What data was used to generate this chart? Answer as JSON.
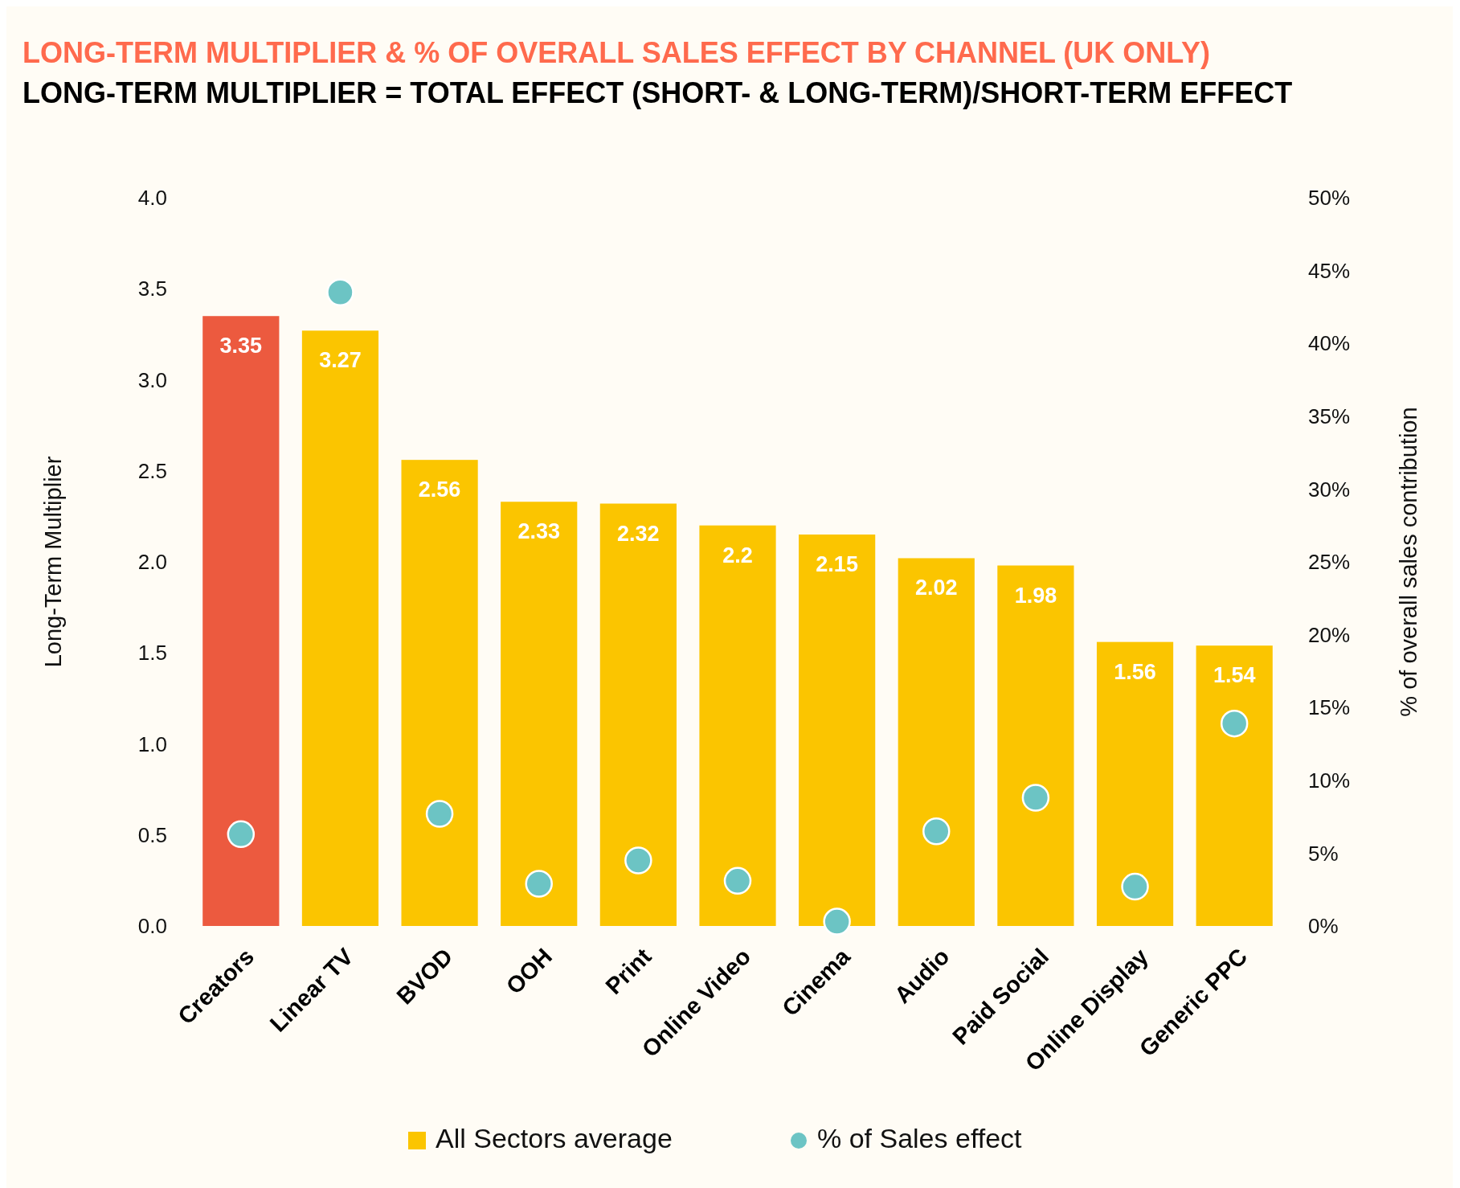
{
  "chart_data": {
    "type": "bar",
    "title": "LONG-TERM MULTIPLIER & % OF OVERALL SALES EFFECT BY CHANNEL (UK ONLY)",
    "subtitle": "LONG-TERM MULTIPLIER = TOTAL EFFECT (SHORT- & LONG-TERM)/SHORT-TERM EFFECT",
    "ylabel": "Long-Term Multiplier",
    "y2label": "% of overall sales contribution",
    "categories": [
      "Creators",
      "Linear TV",
      "BVOD",
      "OOH",
      "Print",
      "Online Video",
      "Cinema",
      "Audio",
      "Paid Social",
      "Online Display",
      "Generic PPC"
    ],
    "series": [
      {
        "name": "All Sectors average",
        "color": "#fbc500",
        "colors": [
          "#ec5a3f",
          "#fbc500",
          "#fbc500",
          "#fbc500",
          "#fbc500",
          "#fbc500",
          "#fbc500",
          "#fbc500",
          "#fbc500",
          "#fbc500",
          "#fbc500"
        ],
        "values": [
          3.35,
          3.27,
          2.56,
          2.33,
          2.32,
          2.2,
          2.15,
          2.02,
          1.98,
          1.56,
          1.54
        ],
        "value_labels": [
          "3.35",
          "3.27",
          "2.56",
          "2.33",
          "2.32",
          "2.2",
          "2.15",
          "2.02",
          "1.98",
          "1.56",
          "1.54"
        ]
      },
      {
        "name": "% of Sales effect",
        "type": "scatter",
        "axis": "y2",
        "color": "#6cc4c4",
        "values": [
          6.3,
          43.5,
          7.7,
          2.9,
          4.5,
          3.1,
          0.3,
          6.5,
          8.8,
          2.7,
          13.9
        ]
      }
    ],
    "ylim": [
      0,
      4
    ],
    "yticks": [
      {
        "value": 0,
        "label": "0.0"
      },
      0.5,
      {
        "value": 1,
        "label": "1.0"
      },
      1.5,
      {
        "value": 2,
        "label": "2.0"
      },
      2.5,
      {
        "value": 3,
        "label": "3.0"
      },
      3.5,
      {
        "value": 4,
        "label": "4.0"
      }
    ],
    "y2lim": [
      0,
      50
    ],
    "y2ticks": [
      {
        "value": 0,
        "label": "0%"
      },
      {
        "value": 5,
        "label": "5%"
      },
      {
        "value": 10,
        "label": "10%"
      },
      {
        "value": 15,
        "label": "15%"
      },
      {
        "value": 20,
        "label": "20%"
      },
      {
        "value": 25,
        "label": "25%"
      },
      {
        "value": 30,
        "label": "30%"
      },
      {
        "value": 35,
        "label": "35%"
      },
      {
        "value": 40,
        "label": "40%"
      },
      {
        "value": 45,
        "label": "45%"
      },
      {
        "value": 50,
        "label": "50%"
      }
    ],
    "marker": "circle",
    "legend": "bottom"
  }
}
